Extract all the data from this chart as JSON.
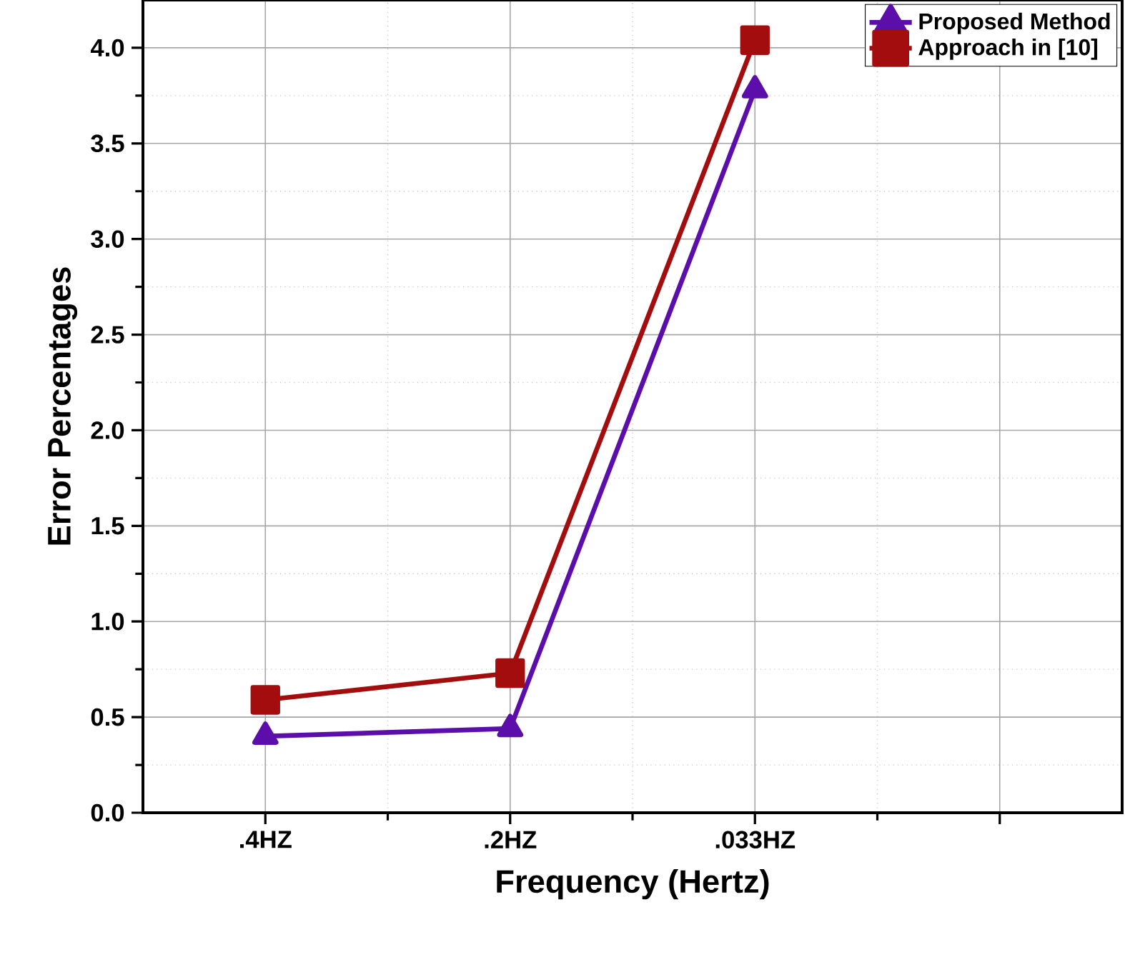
{
  "chart_data": {
    "type": "line",
    "xlabel": "Frequency (Hertz)",
    "ylabel": "Error Percentages",
    "categories": [
      ".4HZ",
      ".2HZ",
      ".033HZ",
      null
    ],
    "series": [
      {
        "name": "Proposed Method",
        "color": "#5c0eab",
        "marker": "triangle",
        "values": [
          0.4,
          0.44,
          3.78,
          null
        ]
      },
      {
        "name": "Approach in [10]",
        "color": "#a30d0d",
        "marker": "square",
        "values": [
          0.59,
          0.73,
          4.04,
          null
        ]
      }
    ],
    "ylim": [
      0,
      4.25
    ],
    "yticks": [
      {
        "value": 0,
        "label": "0.0"
      },
      {
        "value": 0.5,
        "label": "0.5"
      },
      {
        "value": 1,
        "label": "1.0"
      },
      {
        "value": 1.5,
        "label": "1.5"
      },
      {
        "value": 2,
        "label": "2.0"
      },
      {
        "value": 2.5,
        "label": "2.5"
      },
      {
        "value": 3,
        "label": "3.0"
      },
      {
        "value": 3.5,
        "label": "3.5"
      },
      {
        "value": 4,
        "label": "4.0"
      }
    ],
    "grid": true,
    "legend": "top right",
    "line_style": "solid"
  }
}
